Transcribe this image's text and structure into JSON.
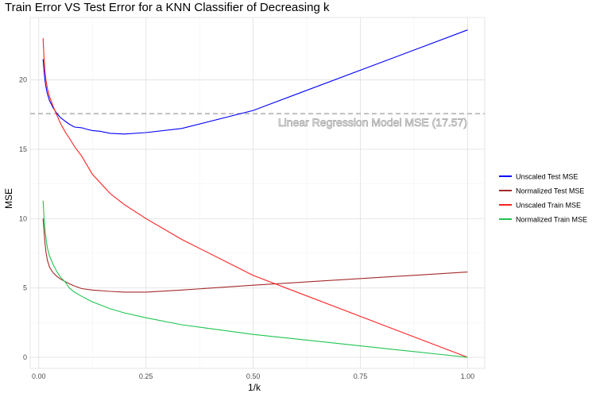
{
  "chart_data": {
    "type": "line",
    "title": "Train Error VS Test Error for a KNN Classifier of Decreasing k",
    "xlabel": "1/k",
    "ylabel": "MSE",
    "xlim": [
      -0.02,
      1.04
    ],
    "ylim": [
      -0.8,
      24.5
    ],
    "x_ticks": [
      0.0,
      0.25,
      0.5,
      0.75,
      1.0
    ],
    "x_tick_labels": [
      "0.00",
      "0.25",
      "0.50",
      "0.75",
      "1.00"
    ],
    "y_ticks": [
      0,
      5,
      10,
      15,
      20
    ],
    "y_tick_labels": [
      "0",
      "5",
      "10",
      "15",
      "20"
    ],
    "grid": true,
    "legend_position": "right",
    "reference_line": {
      "y": 17.57,
      "label": "Linear Regression Model MSE (17.57)",
      "style": "dashed",
      "color": "#a9a9a9"
    },
    "series": [
      {
        "name": "Unscaled Test MSE",
        "color": "#0000ff",
        "x": [
          0.0101,
          0.0125,
          0.0143,
          0.0167,
          0.02,
          0.025,
          0.0333,
          0.0417,
          0.05,
          0.0625,
          0.0714,
          0.0833,
          0.1,
          0.1111,
          0.125,
          0.1429,
          0.1667,
          0.2,
          0.25,
          0.3333,
          0.5,
          1.0
        ],
        "y": [
          21.5,
          20.6,
          20.0,
          19.5,
          19.0,
          18.5,
          18.0,
          17.6,
          17.3,
          17.0,
          16.8,
          16.6,
          16.55,
          16.45,
          16.35,
          16.3,
          16.15,
          16.1,
          16.2,
          16.5,
          17.8,
          23.6
        ]
      },
      {
        "name": "Normalized Test MSE",
        "color": "#a52a2a",
        "x": [
          0.0101,
          0.0125,
          0.0143,
          0.0167,
          0.02,
          0.025,
          0.0333,
          0.0417,
          0.05,
          0.0625,
          0.0714,
          0.0833,
          0.1,
          0.125,
          0.1667,
          0.2,
          0.25,
          0.3333,
          0.5,
          1.0
        ],
        "y": [
          10.0,
          9.0,
          8.3,
          7.6,
          7.0,
          6.5,
          6.1,
          5.85,
          5.65,
          5.45,
          5.3,
          5.15,
          4.95,
          4.85,
          4.75,
          4.7,
          4.7,
          4.85,
          5.2,
          6.15
        ]
      },
      {
        "name": "Unscaled Train MSE",
        "color": "#ff2020",
        "x": [
          0.0101,
          0.0125,
          0.0143,
          0.0167,
          0.02,
          0.025,
          0.0333,
          0.0417,
          0.05,
          0.0625,
          0.0714,
          0.0833,
          0.1,
          0.125,
          0.1667,
          0.2,
          0.25,
          0.3333,
          0.5,
          1.0
        ],
        "y": [
          23.0,
          21.5,
          20.7,
          20.0,
          19.4,
          18.8,
          18.1,
          17.5,
          16.9,
          16.2,
          15.8,
          15.2,
          14.5,
          13.2,
          11.8,
          11.0,
          10.0,
          8.5,
          5.9,
          0.0
        ]
      },
      {
        "name": "Normalized Train MSE",
        "color": "#1fc44f",
        "x": [
          0.0101,
          0.0125,
          0.0143,
          0.0167,
          0.02,
          0.025,
          0.0333,
          0.0417,
          0.05,
          0.0625,
          0.0714,
          0.0833,
          0.1,
          0.125,
          0.1667,
          0.2,
          0.25,
          0.3333,
          0.5,
          1.0
        ],
        "y": [
          11.3,
          10.0,
          9.3,
          8.6,
          7.9,
          7.3,
          6.7,
          6.2,
          5.8,
          5.4,
          5.0,
          4.7,
          4.4,
          4.0,
          3.5,
          3.2,
          2.85,
          2.35,
          1.65,
          0.0
        ]
      }
    ]
  }
}
